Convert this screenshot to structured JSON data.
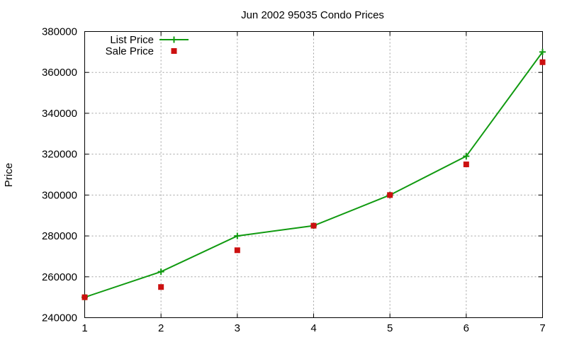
{
  "chart_data": {
    "type": "line",
    "title": "Jun 2002 95035 Condo Prices",
    "xlabel": "",
    "ylabel": "Price",
    "x": [
      1,
      2,
      3,
      4,
      5,
      6,
      7
    ],
    "xlim": [
      1,
      7
    ],
    "ylim": [
      240000,
      380000
    ],
    "xticks": [
      "1",
      "2",
      "3",
      "4",
      "5",
      "6",
      "7"
    ],
    "yticks": [
      "240000",
      "260000",
      "280000",
      "300000",
      "320000",
      "340000",
      "360000",
      "380000"
    ],
    "grid": true,
    "legend_position": "top-left",
    "series": [
      {
        "name": "List Price",
        "style": "line-with-plus-markers",
        "color": "#109a10",
        "values": [
          250000,
          262500,
          280000,
          285000,
          300000,
          319000,
          370000
        ]
      },
      {
        "name": "Sale Price",
        "style": "square-markers",
        "color": "#cc1010",
        "values": [
          250000,
          255000,
          273000,
          285000,
          300000,
          315000,
          365000
        ]
      }
    ]
  }
}
